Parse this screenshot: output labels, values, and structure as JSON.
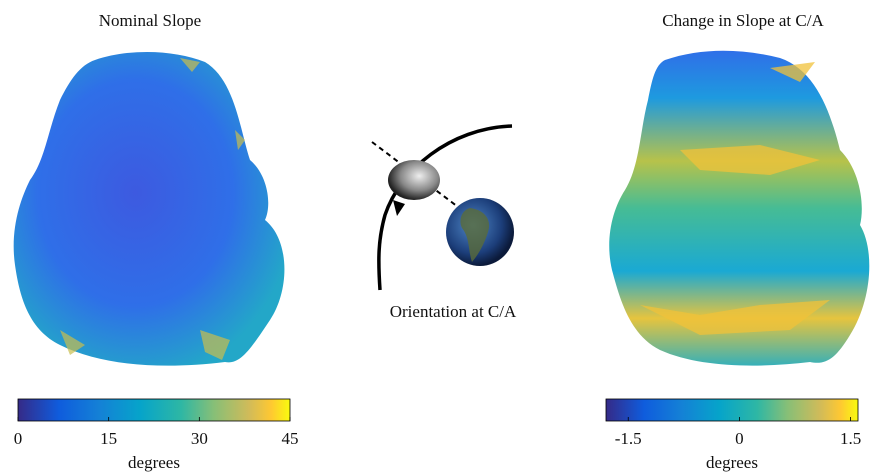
{
  "panels": [
    {
      "title": "Nominal Slope",
      "colorbar": {
        "lim": [
          0,
          45
        ],
        "ticks": [
          0,
          15,
          30,
          45
        ],
        "label": "degrees"
      }
    },
    {
      "title": "Change in Slope at C/A",
      "colorbar": {
        "lim": [
          -1.8,
          1.6
        ],
        "ticks": [
          -1.5,
          0,
          1.5
        ],
        "label": "degrees"
      }
    }
  ],
  "center": {
    "caption": "Orientation at C/A"
  }
}
